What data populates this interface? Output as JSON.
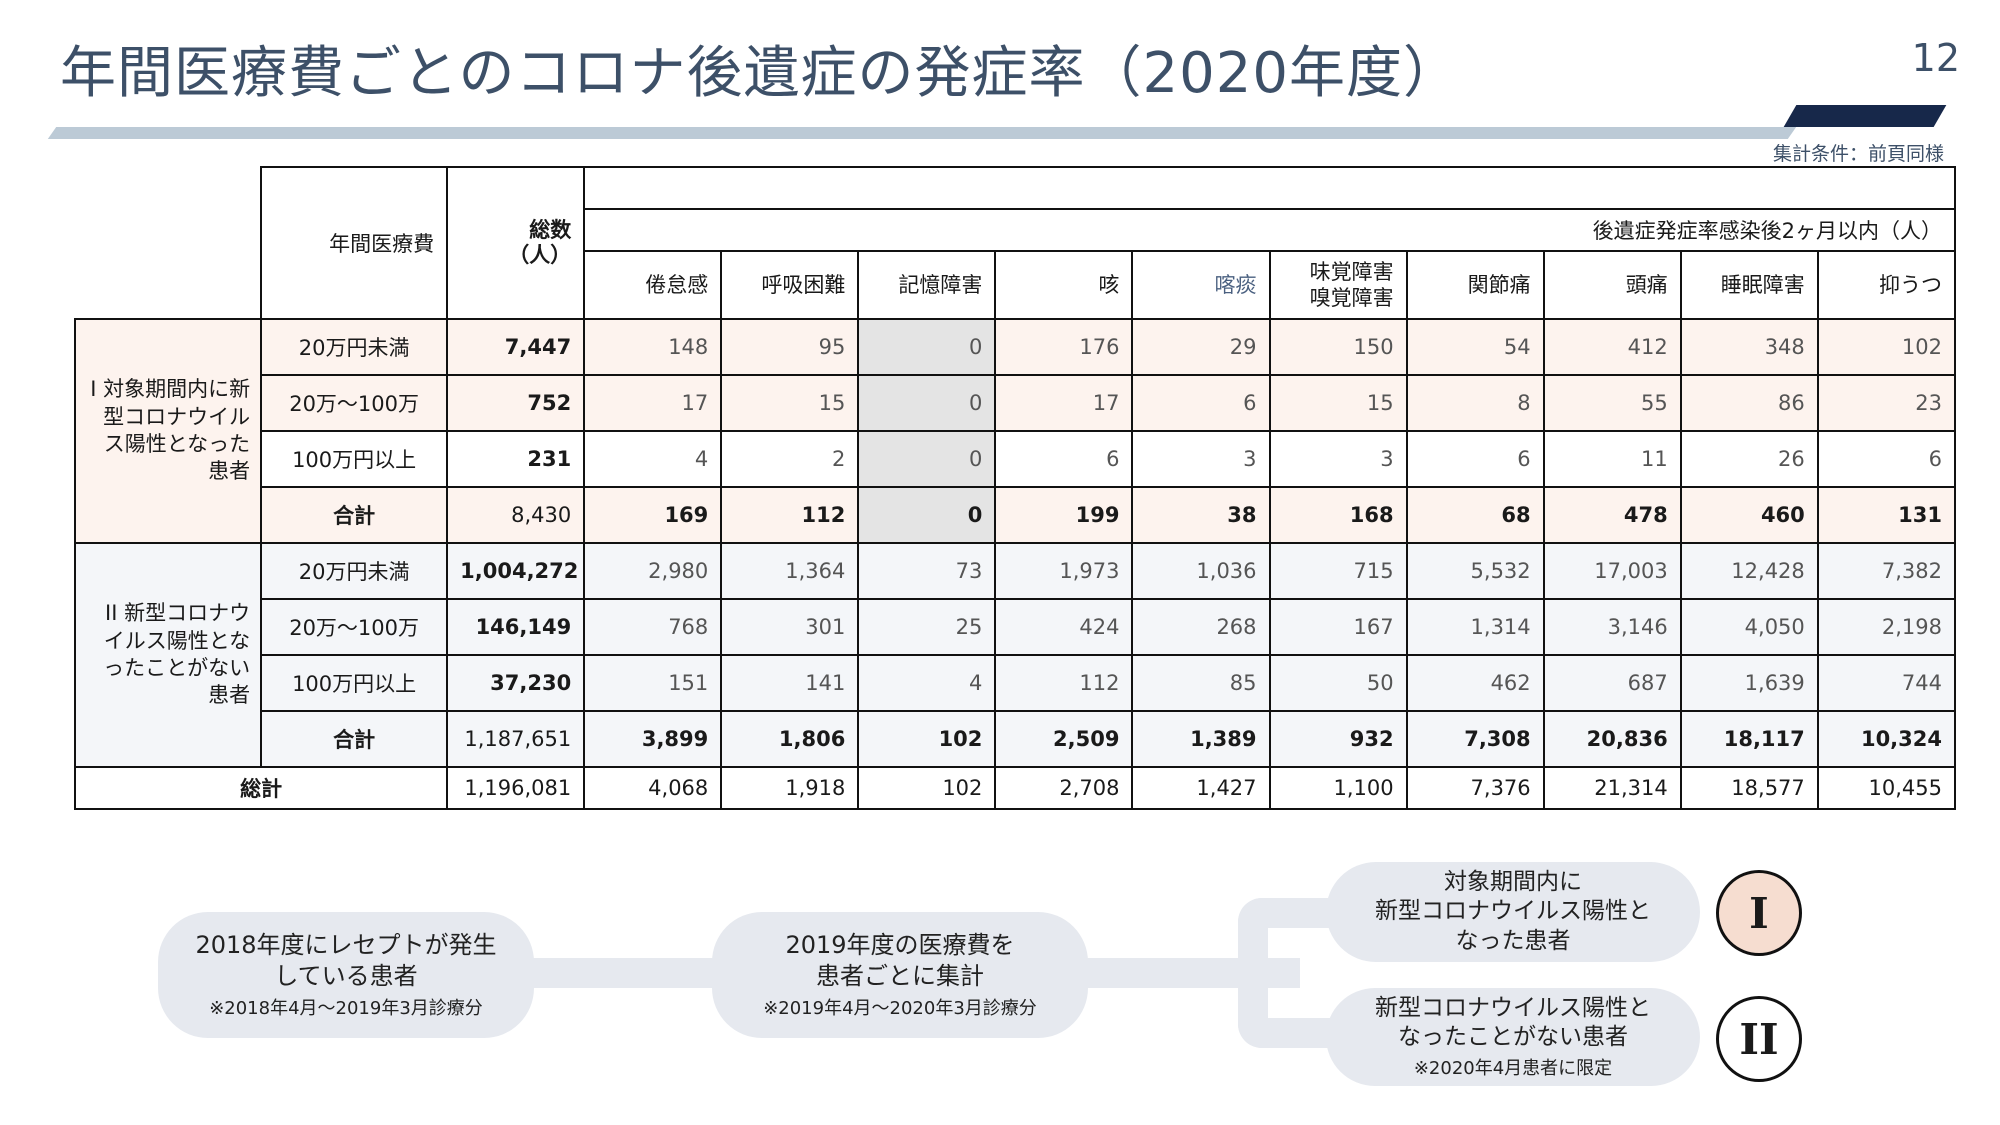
{
  "header": {
    "title": "年間医療費ごとのコロナ後遺症の発症率（2020年度）",
    "page_number": "12",
    "conditions": "集計条件：前頁同様"
  },
  "table": {
    "col_cost": "年間医療費",
    "col_total": "総数\n（人）",
    "super_header": "後遺症発症率感染後2ヶ月以内（人）",
    "symptoms": [
      "倦怠感",
      "呼吸困難",
      "記憶障害",
      "咳",
      "喀痰",
      "味覚障害\n嗅覚障害",
      "関節痛",
      "頭痛",
      "睡眠障害",
      "抑うつ"
    ],
    "group1": {
      "label": "I\n対象期間内に新型コロナウイルス陽性となった患者",
      "rows": [
        {
          "cost": "20万円未満",
          "total": "7,447",
          "values": [
            "148",
            "95",
            "0",
            "176",
            "29",
            "150",
            "54",
            "412",
            "348",
            "102"
          ]
        },
        {
          "cost": "20万～100万",
          "total": "752",
          "values": [
            "17",
            "15",
            "0",
            "17",
            "6",
            "15",
            "8",
            "55",
            "86",
            "23"
          ]
        },
        {
          "cost": "100万円以上",
          "total": "231",
          "values": [
            "4",
            "2",
            "0",
            "6",
            "3",
            "3",
            "6",
            "11",
            "26",
            "6"
          ]
        },
        {
          "cost": "合計",
          "total": "8,430",
          "values": [
            "169",
            "112",
            "0",
            "199",
            "38",
            "168",
            "68",
            "478",
            "460",
            "131"
          ]
        }
      ]
    },
    "group2": {
      "label": "II\n新型コロナウイルス陽性となったことがない患者",
      "rows": [
        {
          "cost": "20万円未満",
          "total": "1,004,272",
          "values": [
            "2,980",
            "1,364",
            "73",
            "1,973",
            "1,036",
            "715",
            "5,532",
            "17,003",
            "12,428",
            "7,382"
          ]
        },
        {
          "cost": "20万～100万",
          "total": "146,149",
          "values": [
            "768",
            "301",
            "25",
            "424",
            "268",
            "167",
            "1,314",
            "3,146",
            "4,050",
            "2,198"
          ]
        },
        {
          "cost": "100万円以上",
          "total": "37,230",
          "values": [
            "151",
            "141",
            "4",
            "112",
            "85",
            "50",
            "462",
            "687",
            "1,639",
            "744"
          ]
        },
        {
          "cost": "合計",
          "total": "1,187,651",
          "values": [
            "3,899",
            "1,806",
            "102",
            "2,509",
            "1,389",
            "932",
            "7,308",
            "20,836",
            "18,117",
            "10,324"
          ]
        }
      ]
    },
    "grand_total": {
      "label": "総計",
      "total": "1,196,081",
      "values": [
        "4,068",
        "1,918",
        "102",
        "2,708",
        "1,427",
        "1,100",
        "7,376",
        "21,314",
        "18,577",
        "10,455"
      ]
    }
  },
  "flow": {
    "step1": {
      "main": "2018年度にレセプトが発生\nしている患者",
      "note": "※2018年4月～2019年3月診療分"
    },
    "step2": {
      "main": "2019年度の医療費を\n患者ごとに集計",
      "note": "※2019年4月～2020年3月診療分"
    },
    "branch1": {
      "main": "対象期間内に\n新型コロナウイルス陽性と\nなった患者",
      "badge": "I"
    },
    "branch2": {
      "main": "新型コロナウイルス陽性と\nなったことがない患者",
      "note": "※2020年4月患者に限定",
      "badge": "II"
    }
  },
  "colors": {
    "title": "#3d5068",
    "rule": "#bccad6",
    "accent": "#17284a",
    "group1_bg": "#fdf3ee",
    "group2_bg": "#f4f6f9",
    "memory_col_bg": "#e4e4e4",
    "badge1_bg": "#f6ddd0",
    "pill_bg": "#e6e9ef"
  }
}
